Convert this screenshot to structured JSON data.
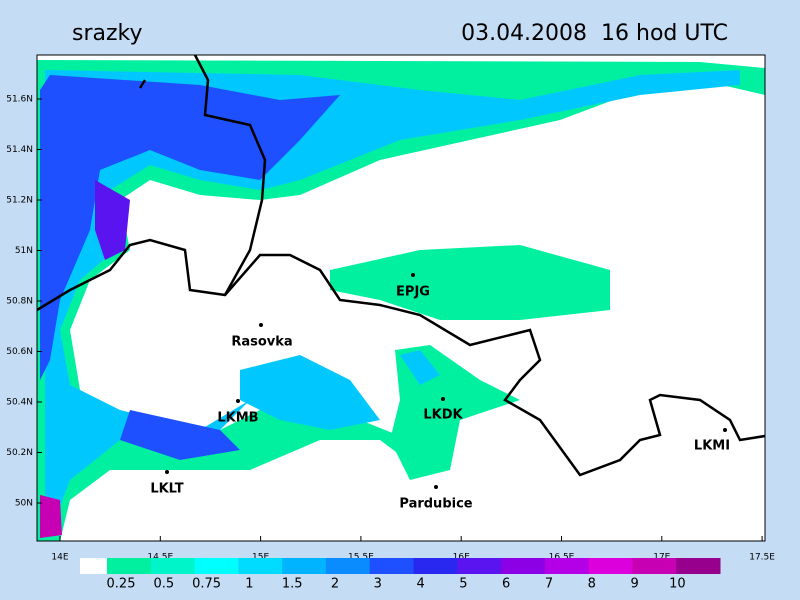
{
  "header": {
    "title": "srazky",
    "datetime": "03.04.2008  16 hod UTC"
  },
  "axes": {
    "lat_labels": [
      "51.6N",
      "51.4N",
      "51.2N",
      "51N",
      "50.8N",
      "50.6N",
      "50.4N",
      "50.2N",
      "50N"
    ],
    "lon_labels": [
      "14E",
      "14.5E",
      "15E",
      "15.5E",
      "16E",
      "16.5E",
      "17E",
      "17.5E"
    ]
  },
  "stations": [
    {
      "name": "EPJG"
    },
    {
      "name": "Rasovka"
    },
    {
      "name": "LKMB"
    },
    {
      "name": "LKDK"
    },
    {
      "name": "LKLT"
    },
    {
      "name": "Pardubice"
    },
    {
      "name": "LKMI"
    }
  ],
  "legend": {
    "labels": [
      "0.25",
      "0.5",
      "0.75",
      "1",
      "1.5",
      "2",
      "3",
      "4",
      "5",
      "6",
      "7",
      "8",
      "9",
      "10"
    ],
    "colors": [
      "#00f0a0",
      "#00f5c8",
      "#00ffff",
      "#00dcff",
      "#00b4ff",
      "#0a8cff",
      "#1e50ff",
      "#2828f0",
      "#5a14f0",
      "#8c00e6",
      "#b400e6",
      "#dc00dc",
      "#c800b4",
      "#96008c"
    ]
  }
}
